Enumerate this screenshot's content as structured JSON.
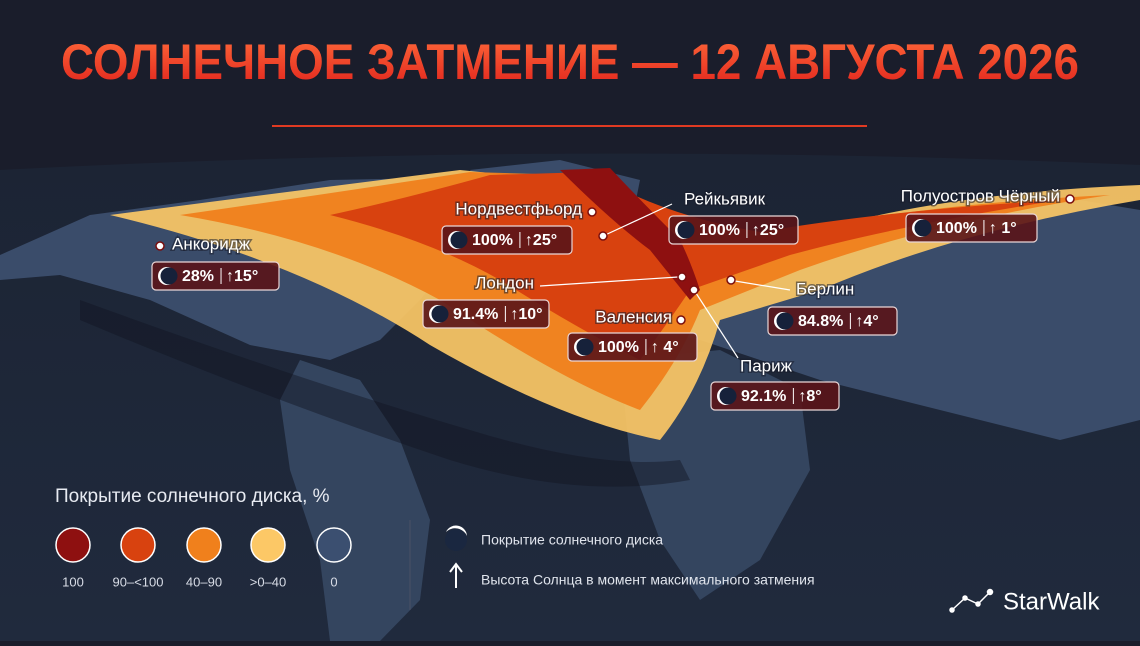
{
  "title": "СОЛНЕЧНОЕ ЗАТМЕНИЕ — 12 АВГУСТА 2026",
  "cities": [
    {
      "name": "Анкоридж",
      "coverage": "28%",
      "altitude": "↑15°"
    },
    {
      "name": "Нордвестфьорд",
      "coverage": "100%",
      "altitude": "↑25°"
    },
    {
      "name": "Рейкьявик",
      "coverage": "100%",
      "altitude": "↑25°"
    },
    {
      "name": "Полуостров Чёрный",
      "coverage": "100%",
      "altitude": "↑ 1°"
    },
    {
      "name": "Лондон",
      "coverage": "91.4%",
      "altitude": "↑10°"
    },
    {
      "name": "Валенсия",
      "coverage": "100%",
      "altitude": "↑ 4°"
    },
    {
      "name": "Берлин",
      "coverage": "84.8%",
      "altitude": "↑4°"
    },
    {
      "name": "Париж",
      "coverage": "92.1%",
      "altitude": "↑8°"
    }
  ],
  "legend": {
    "title": "Покрытие солнечного диска, %",
    "items": [
      {
        "label": "100",
        "color": "#8e1010"
      },
      {
        "label": "90–<100",
        "color": "#d8420f"
      },
      {
        "label": "40–90",
        "color": "#f0801c"
      },
      {
        "label": ">0–40",
        "color": "#fcc866"
      },
      {
        "label": "0",
        "color": "#3b4f70"
      }
    ],
    "notes": [
      "Покрытие солнечного диска",
      "Высота Солнца в момент максимального затмения"
    ]
  },
  "logo": "StarWalk"
}
